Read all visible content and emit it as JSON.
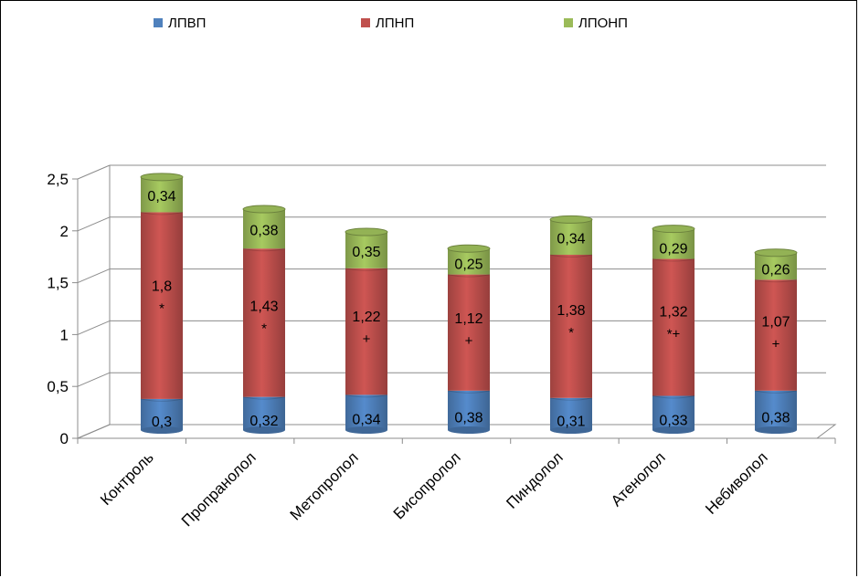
{
  "chart_data": {
    "type": "bar",
    "stacked": true,
    "categories": [
      "Контроль",
      "Пропранолол",
      "Метопролол",
      "Бисопролол",
      "Пиндолол",
      "Атенолол",
      "Небиволол"
    ],
    "series": [
      {
        "name": "ЛПВП",
        "values": [
          0.3,
          0.32,
          0.34,
          0.38,
          0.31,
          0.33,
          0.38
        ],
        "labels": [
          "0,3",
          "0,32",
          "0,34",
          "0,38",
          "0,31",
          "0,33",
          "0,38"
        ],
        "color": "#4F81BD"
      },
      {
        "name": "ЛПНП",
        "values": [
          1.8,
          1.43,
          1.22,
          1.12,
          1.38,
          1.32,
          1.07
        ],
        "labels": [
          "1,8",
          "1,43",
          "1,22",
          "1,12",
          "1,38",
          "1,32",
          "1,07"
        ],
        "color": "#C0504D"
      },
      {
        "name": "ЛПОНП",
        "values": [
          0.34,
          0.38,
          0.35,
          0.25,
          0.34,
          0.29,
          0.26
        ],
        "labels": [
          "0,34",
          "0,38",
          "0,35",
          "0,25",
          "0,34",
          "0,29",
          "0,26"
        ],
        "color": "#9BBB59"
      }
    ],
    "annotations": [
      "*",
      "*",
      "+",
      "+",
      "*",
      "*+",
      "+"
    ],
    "ylim": [
      0,
      2.5
    ],
    "yticks": [
      0,
      0.5,
      1,
      1.5,
      2,
      2.5
    ],
    "ytick_labels": [
      "0",
      "0,5",
      "1",
      "1,5",
      "2",
      "2,5"
    ],
    "grid": true,
    "legend_position": "top",
    "style": "3d"
  }
}
